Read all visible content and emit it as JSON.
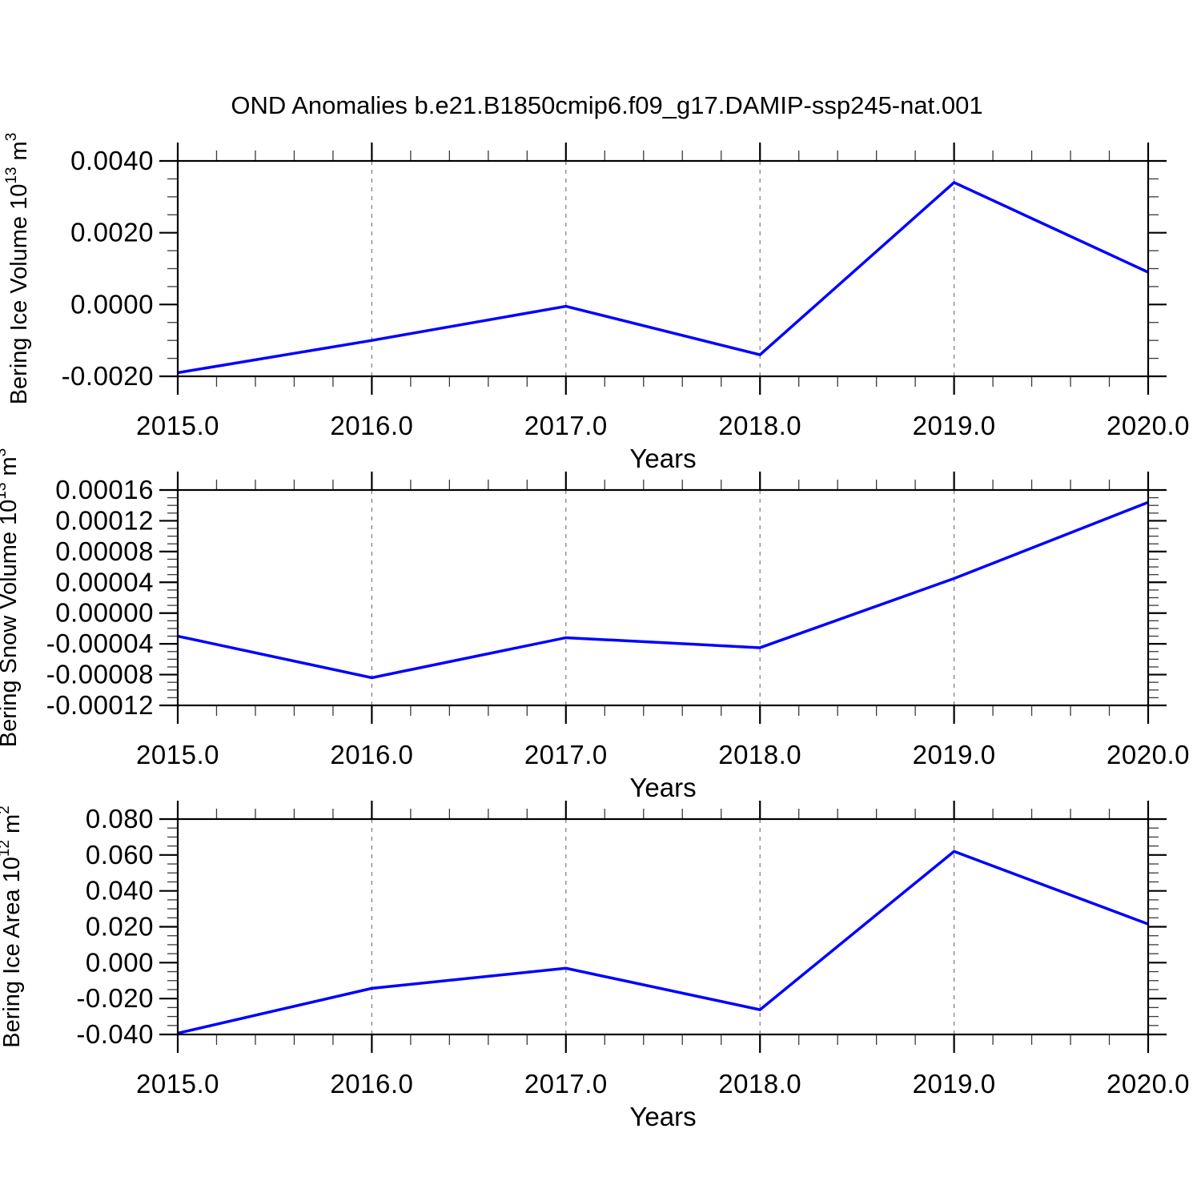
{
  "figure": {
    "title": "OND Anomalies b.e21.B1850cmip6.f09_g17.DAMIP-ssp245-nat.001",
    "background": "#ffffff"
  },
  "colors": {
    "line": "#0000ff",
    "frame": "#000000",
    "major_tick": "#000000",
    "minor_tick": "#3a3a3a",
    "grid": "#7a7a7a",
    "text": "#000000"
  },
  "chart_data": [
    {
      "type": "line",
      "name": "bering-ice-volume",
      "ylabel_text": "Bering Ice Volume 10^13 m^3",
      "ylabel_parts": [
        {
          "t": "Bering Ice Volume 10"
        },
        {
          "t": "13",
          "sup": true
        },
        {
          "t": " m"
        },
        {
          "t": "3",
          "sup": true
        }
      ],
      "xlabel": "Years",
      "x": [
        2015,
        2016,
        2017,
        2018,
        2019,
        2020
      ],
      "values": [
        -0.0019,
        -0.001,
        -5e-05,
        -0.0014,
        0.0034,
        0.0009
      ],
      "xlim": [
        2015,
        2020
      ],
      "ylim": [
        -0.002,
        0.004
      ],
      "xtick_labels": [
        "2015.0",
        "2016.0",
        "2017.0",
        "2018.0",
        "2019.0",
        "2020.0"
      ],
      "xminor_step": 0.2,
      "grid_x": [
        2016,
        2017,
        2018,
        2019
      ],
      "ytick_values": [
        0.004,
        0.002,
        0.0,
        -0.002
      ],
      "ytick_labels": [
        "0.0040",
        "0.0020",
        "0.0000",
        "-0.0020"
      ],
      "yminor_step": 0.0005
    },
    {
      "type": "line",
      "name": "bering-snow-volume",
      "ylabel_text": "Bering Snow Volume 10^13 m^3",
      "ylabel_parts": [
        {
          "t": "Bering Snow Volume 10"
        },
        {
          "t": "13",
          "sup": true
        },
        {
          "t": " m"
        },
        {
          "t": "3",
          "sup": true
        }
      ],
      "xlabel": "Years",
      "x": [
        2015,
        2016,
        2017,
        2018,
        2019,
        2020
      ],
      "values": [
        -3e-05,
        -8.4e-05,
        -3.2e-05,
        -4.5e-05,
        4.5e-05,
        0.000144
      ],
      "xlim": [
        2015,
        2020
      ],
      "ylim": [
        -0.00012,
        0.00016
      ],
      "xtick_labels": [
        "2015.0",
        "2016.0",
        "2017.0",
        "2018.0",
        "2019.0",
        "2020.0"
      ],
      "xminor_step": 0.2,
      "grid_x": [
        2016,
        2017,
        2018,
        2019
      ],
      "ytick_values": [
        0.00016,
        0.00012,
        8e-05,
        4e-05,
        0.0,
        -4e-05,
        -8e-05,
        -0.00012
      ],
      "ytick_labels": [
        "0.00016",
        "0.00012",
        "0.00008",
        "0.00004",
        "0.00000",
        "-0.00004",
        "-0.00008",
        "-0.00012"
      ],
      "yminor_step": 1e-05
    },
    {
      "type": "line",
      "name": "bering-ice-area",
      "ylabel_text": "Bering Ice Area 10^12 m^2",
      "ylabel_parts": [
        {
          "t": "Bering Ice Area 10"
        },
        {
          "t": "12",
          "sup": true
        },
        {
          "t": " m"
        },
        {
          "t": "2",
          "sup": true
        }
      ],
      "xlabel": "Years",
      "x": [
        2015,
        2016,
        2017,
        2018,
        2019,
        2020
      ],
      "values": [
        -0.0393,
        -0.0143,
        -0.0031,
        -0.0262,
        0.062,
        0.0215
      ],
      "xlim": [
        2015,
        2020
      ],
      "ylim": [
        -0.04,
        0.08
      ],
      "xtick_labels": [
        "2015.0",
        "2016.0",
        "2017.0",
        "2018.0",
        "2019.0",
        "2020.0"
      ],
      "xminor_step": 0.2,
      "grid_x": [
        2016,
        2017,
        2018,
        2019
      ],
      "ytick_values": [
        0.08,
        0.06,
        0.04,
        0.02,
        0.0,
        -0.02,
        -0.04
      ],
      "ytick_labels": [
        "0.080",
        "0.060",
        "0.040",
        "0.020",
        "0.000",
        "-0.020",
        "-0.040"
      ],
      "yminor_step": 0.005
    }
  ]
}
